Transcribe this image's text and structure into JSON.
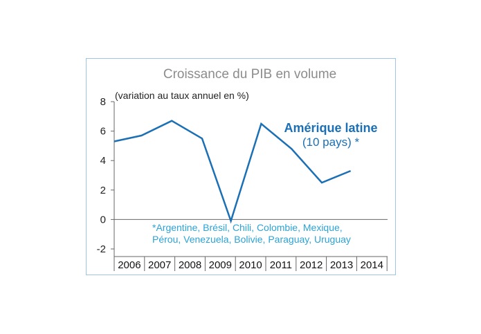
{
  "chart_data": {
    "type": "line",
    "title": "Croissance du PIB en volume",
    "subtitle": "(variation au taux annuel en %)",
    "x_categories": [
      "2006",
      "2007",
      "2008",
      "2009",
      "2010",
      "2011",
      "2012",
      "2013",
      "2014"
    ],
    "y_ticks": [
      "8",
      "6",
      "4",
      "2",
      "0",
      "-2"
    ],
    "ylim": [
      -2,
      8
    ],
    "grid": false,
    "series": [
      {
        "name": "Amérique latine",
        "name_sub": "(10 pays) *",
        "color": "#1a6fb5",
        "points": [
          {
            "x": 2005.5,
            "y": 5.3
          },
          {
            "x": 2006.4,
            "y": 5.7
          },
          {
            "x": 2007.4,
            "y": 6.7
          },
          {
            "x": 2008.4,
            "y": 5.5
          },
          {
            "x": 2009.35,
            "y": -0.1
          },
          {
            "x": 2010.35,
            "y": 6.5
          },
          {
            "x": 2011.35,
            "y": 4.8
          },
          {
            "x": 2012.35,
            "y": 2.5
          },
          {
            "x": 2013.3,
            "y": 3.3
          }
        ]
      }
    ],
    "footnote": [
      "*Argentine, Brésil, Chili, Colombie, Mexique,",
      "Pérou, Venezuela, Bolivie, Paraguay, Uruguay"
    ]
  }
}
